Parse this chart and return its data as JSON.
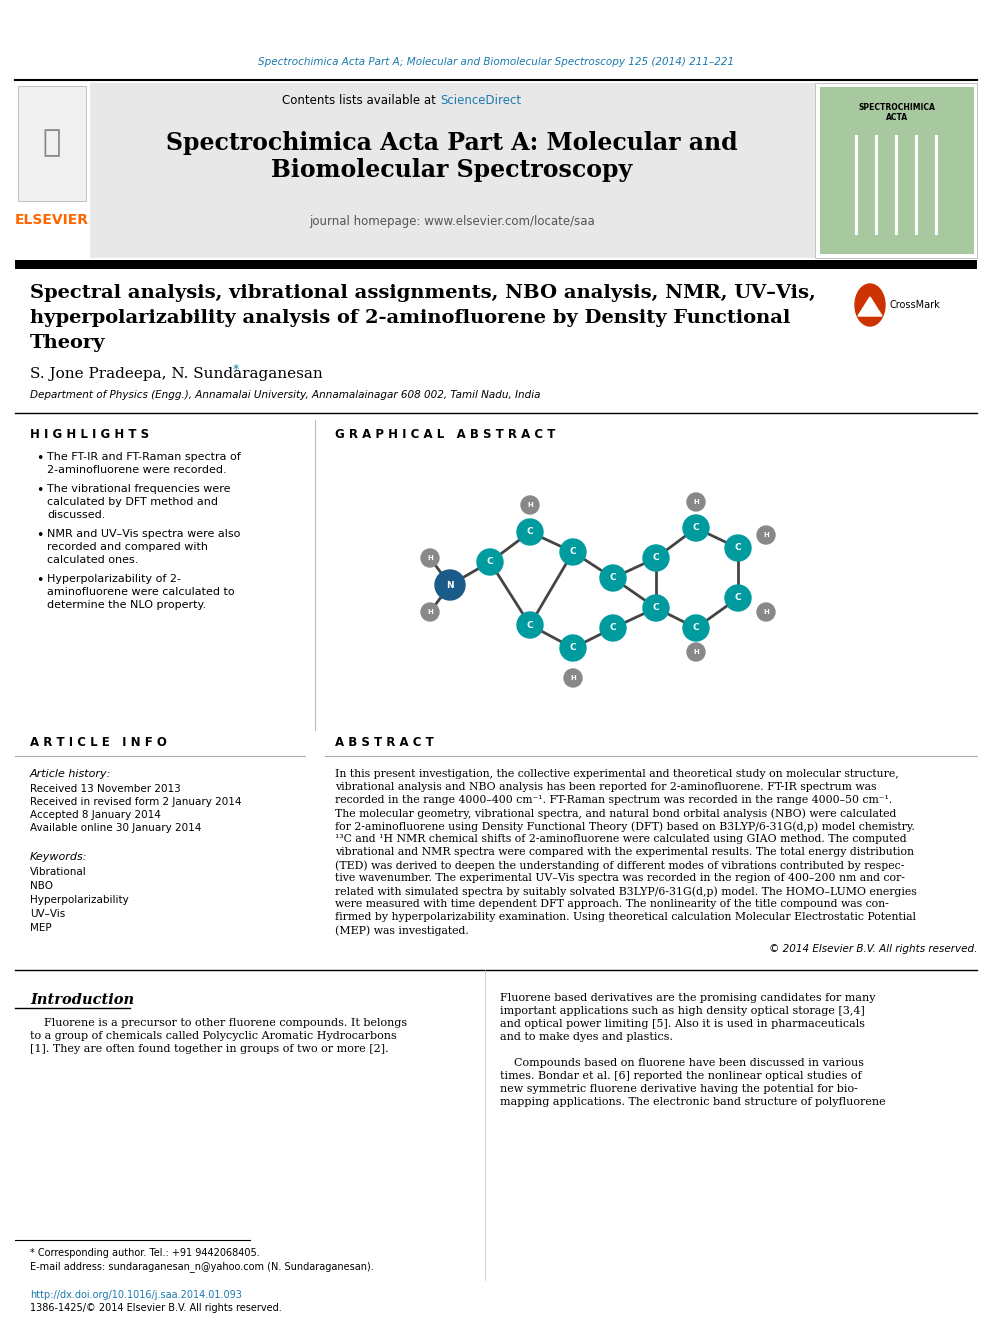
{
  "journal_line": "Spectrochimica Acta Part A; Molecular and Biomolecular Spectroscopy 125 (2014) 211–221",
  "science_direct": "ScienceDirect",
  "journal_title_line1": "Spectrochimica Acta Part A: Molecular and",
  "journal_title_line2": "Biomolecular Spectroscopy",
  "journal_homepage": "journal homepage: www.elsevier.com/locate/saa",
  "paper_title_line1": "Spectral analysis, vibrational assignments, NBO analysis, NMR, UV–Vis,",
  "paper_title_line2": "hyperpolarizability analysis of 2-aminofluorene by Density Functional",
  "paper_title_line3": "Theory",
  "authors": "S. Jone Pradeepa, N. Sundaraganesan",
  "affiliation": "Department of Physics (Engg.), Annamalai University, Annamalainagar 608 002, Tamil Nadu, India",
  "highlights_title": "H I G H L I G H T S",
  "highlights": [
    "The FT-IR and FT-Raman spectra of\n2-aminofluorene were recorded.",
    "The vibrational frequencies were\ncalculated by DFT method and\ndiscussed.",
    "NMR and UV–Vis spectra were also\nrecorded and compared with\ncalculated ones.",
    "Hyperpolarizability of 2-\naminofluorene were calculated to\ndetermine the NLO property."
  ],
  "graphical_abstract_title": "G R A P H I C A L   A B S T R A C T",
  "article_info_title": "A R T I C L E   I N F O",
  "article_history_title": "Article history:",
  "received": "Received 13 November 2013",
  "revised": "Received in revised form 2 January 2014",
  "accepted": "Accepted 8 January 2014",
  "available": "Available online 30 January 2014",
  "keywords_title": "Keywords:",
  "keywords": [
    "Vibrational",
    "NBO",
    "Hyperpolarizability",
    "UV–Vis",
    "MEP"
  ],
  "abstract_title": "A B S T R A C T",
  "abstract_lines": [
    "In this present investigation, the collective experimental and theoretical study on molecular structure,",
    "vibrational analysis and NBO analysis has been reported for 2-aminofluorene. FT-IR spectrum was",
    "recorded in the range 4000–400 cm⁻¹. FT-Raman spectrum was recorded in the range 4000–50 cm⁻¹.",
    "The molecular geometry, vibrational spectra, and natural bond orbital analysis (NBO) were calculated",
    "for 2-aminofluorene using Density Functional Theory (DFT) based on B3LYP/6-31G(d,p) model chemistry.",
    "¹³C and ¹H NMR chemical shifts of 2-aminofluorene were calculated using GIAO method. The computed",
    "vibrational and NMR spectra were compared with the experimental results. The total energy distribution",
    "(TED) was derived to deepen the understanding of different modes of vibrations contributed by respec-",
    "tive wavenumber. The experimental UV–Vis spectra was recorded in the region of 400–200 nm and cor-",
    "related with simulated spectra by suitably solvated B3LYP/6-31G(d,p) model. The HOMO–LUMO energies",
    "were measured with time dependent DFT approach. The nonlinearity of the title compound was con-",
    "firmed by hyperpolarizability examination. Using theoretical calculation Molecular Electrostatic Potential",
    "(MEP) was investigated."
  ],
  "copyright": "© 2014 Elsevier B.V. All rights reserved.",
  "intro_title": "Introduction",
  "intro_col1_lines": [
    "    Fluorene is a precursor to other fluorene compounds. It belongs",
    "to a group of chemicals called Polycyclic Aromatic Hydrocarbons",
    "[1]. They are often found together in groups of two or more [2]."
  ],
  "intro_col2_lines": [
    "Fluorene based derivatives are the promising candidates for many",
    "important applications such as high density optical storage [3,4]",
    "and optical power limiting [5]. Also it is used in pharmaceuticals",
    "and to make dyes and plastics.",
    "",
    "    Compounds based on fluorene have been discussed in various",
    "times. Bondar et al. [6] reported the nonlinear optical studies of",
    "new symmetric fluorene derivative having the potential for bio-",
    "mapping applications. The electronic band structure of polyfluorene"
  ],
  "footnote_star": "* Corresponding author. Tel.: +91 9442068405.",
  "footnote_email": "E-mail address: sundaraganesan_n@yahoo.com (N. Sundaraganesan).",
  "doi_line": "http://dx.doi.org/10.1016/j.saa.2014.01.093",
  "issn_line": "1386-1425/© 2014 Elsevier B.V. All rights reserved.",
  "elsevier_color": "#FF6600",
  "header_blue": "#1a7aad",
  "teal_color": "#009B9E",
  "white": "#ffffff",
  "green_cover": "#a8c8a0"
}
